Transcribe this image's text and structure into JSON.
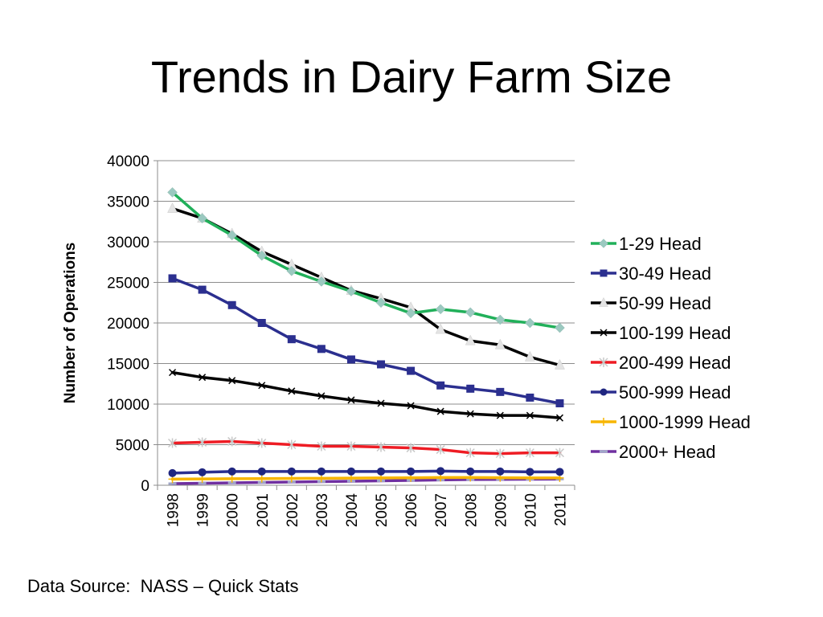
{
  "page": {
    "title": "Trends in Dairy Farm Size",
    "source": "Data Source:  NASS – Quick Stats"
  },
  "chart_data": {
    "type": "line",
    "title": "",
    "xlabel": "",
    "ylabel": "Number of Operations",
    "x": [
      "1998",
      "1999",
      "2000",
      "2001",
      "2002",
      "2003",
      "2004",
      "2005",
      "2006",
      "2007",
      "2008",
      "2009",
      "2010",
      "2011"
    ],
    "ylim": [
      0,
      40000
    ],
    "yticks": [
      0,
      5000,
      10000,
      15000,
      20000,
      25000,
      30000,
      35000,
      40000
    ],
    "grid": true,
    "legend": "right",
    "series": [
      {
        "name": "1-29 Head",
        "color": "#21b05a",
        "marker": "diamond",
        "marker_color": "#9bc9c0",
        "values": [
          36100,
          32900,
          30800,
          28300,
          26400,
          25100,
          23900,
          22500,
          21200,
          21700,
          21300,
          20400,
          20000,
          19400
        ]
      },
      {
        "name": "30-49 Head",
        "color": "#2b2f8f",
        "marker": "square",
        "marker_color": "#2b2f8f",
        "values": [
          25500,
          24100,
          22200,
          20000,
          18000,
          16800,
          15500,
          14900,
          14100,
          12300,
          11900,
          11500,
          10800,
          10100
        ]
      },
      {
        "name": "50-99 Head",
        "color": "#000000",
        "marker": "triangle",
        "marker_color": "#e4e4e4",
        "values": [
          34100,
          32900,
          31000,
          28800,
          27200,
          25600,
          24000,
          23000,
          21900,
          19200,
          17800,
          17300,
          15800,
          14800
        ]
      },
      {
        "name": "100-199 Head",
        "color": "#000000",
        "marker": "x",
        "marker_color": "#000000",
        "values": [
          13900,
          13300,
          12900,
          12300,
          11600,
          11000,
          10500,
          10100,
          9800,
          9100,
          8800,
          8600,
          8600,
          8300
        ]
      },
      {
        "name": "200-499 Head",
        "color": "#ee1c24",
        "marker": "star",
        "marker_color": "#c8c8c8",
        "values": [
          5200,
          5300,
          5400,
          5200,
          5000,
          4800,
          4800,
          4700,
          4600,
          4400,
          4000,
          3900,
          4000,
          4000
        ]
      },
      {
        "name": "500-999 Head",
        "color": "#2b2f8f",
        "marker": "circle",
        "marker_color": "#1f2680",
        "values": [
          1500,
          1600,
          1700,
          1700,
          1700,
          1700,
          1700,
          1700,
          1700,
          1750,
          1700,
          1700,
          1650,
          1650
        ]
      },
      {
        "name": "1000-1999 Head",
        "color": "#f7b500",
        "marker": "plus",
        "marker_color": "#f7b500",
        "values": [
          750,
          780,
          800,
          820,
          840,
          860,
          880,
          900,
          920,
          950,
          950,
          930,
          900,
          900
        ]
      },
      {
        "name": "2000+ Head",
        "color": "#7030a0",
        "marker": "dash",
        "marker_color": "#9fa6c8",
        "values": [
          200,
          250,
          300,
          350,
          400,
          450,
          500,
          550,
          600,
          650,
          700,
          720,
          740,
          760
        ]
      }
    ]
  }
}
